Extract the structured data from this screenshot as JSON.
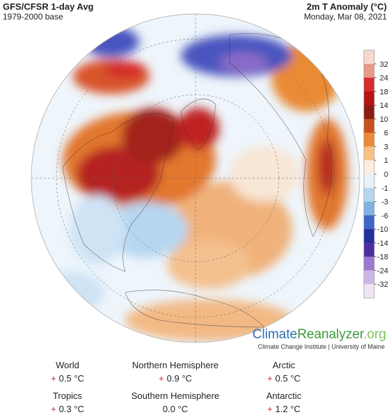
{
  "header": {
    "title_left": "GFS/CFSR 1-day Avg",
    "subtitle_left": "1979-2000 base",
    "title_right": "2m T Anomaly (°C)",
    "subtitle_right": "Monday, Mar 08, 2021"
  },
  "legend": {
    "labels": [
      "32",
      "24",
      "18",
      "14",
      "10",
      "6",
      "3",
      "1",
      "0",
      "-1",
      "-3",
      "-6",
      "-10",
      "-14",
      "-18",
      "-24",
      "-32"
    ],
    "colors": [
      "#f6d9cc",
      "#e79a8a",
      "#d62c2c",
      "#b51515",
      "#8c1c13",
      "#c8521c",
      "#e98a36",
      "#f6c089",
      "#fbeee0",
      "#e8f2fa",
      "#b6d6f0",
      "#7fb1e3",
      "#3e66c6",
      "#232f9a",
      "#4b2fa0",
      "#9b79cf",
      "#cdb6e6",
      "#efe6f5"
    ]
  },
  "logo": {
    "part1": "Climate",
    "part2": "Reanalyzer",
    "part3": ".org",
    "tagline": "Climate Change Institute | University of Maine"
  },
  "stats": [
    {
      "label": "World",
      "sign": "+",
      "value": "0.5 °C"
    },
    {
      "label": "Northern Hemisphere",
      "sign": "+",
      "value": "0.9 °C"
    },
    {
      "label": "Arctic",
      "sign": "+",
      "value": "0.5 °C"
    },
    {
      "label": "Tropics",
      "sign": "+",
      "value": "0.3 °C"
    },
    {
      "label": "Southern Hemisphere",
      "sign": "",
      "value": "0.0 °C"
    },
    {
      "label": "Antarctic",
      "sign": "+",
      "value": "1.2 °C"
    }
  ]
}
